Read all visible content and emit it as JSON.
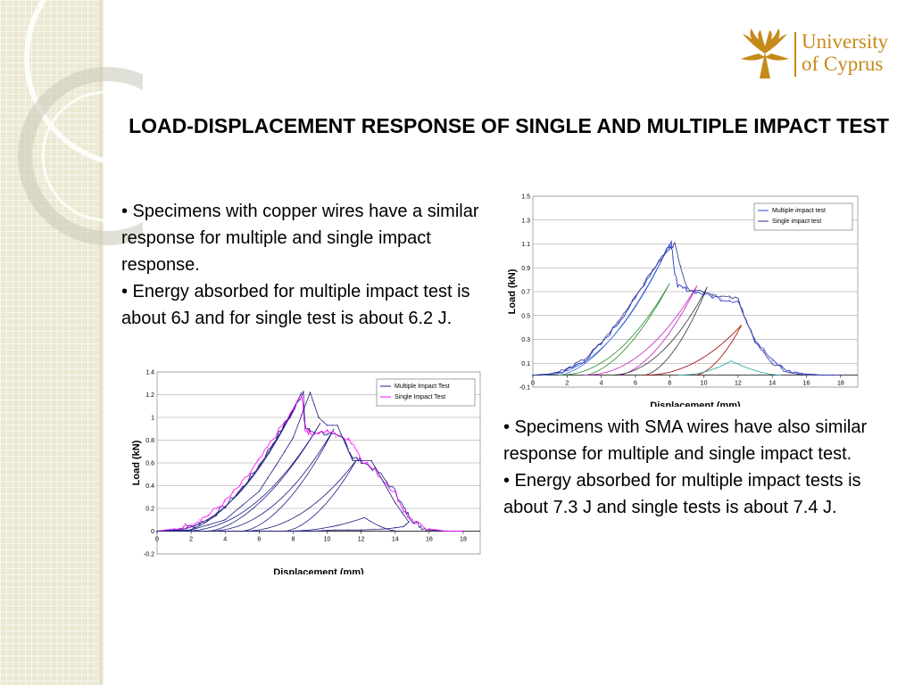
{
  "slide": {
    "title": "LOAD-DISPLACEMENT RESPONSE OF SINGLE AND MULTIPLE IMPACT TEST",
    "logo": {
      "line1": "University",
      "line2": "of Cyprus"
    },
    "colors": {
      "logo_gold": "#c68a1a",
      "sidebar": "#ece8d2"
    }
  },
  "text_top": {
    "bullet1": "• Specimens with copper wires have a similar response for multiple and single impact response.",
    "bullet2": "• Energy absorbed for multiple impact test is about 6J and for single test is about 6.2 J."
  },
  "text_bottom": {
    "bullet1": "• Specimens with SMA wires have also similar response for multiple and single impact test.",
    "bullet2": "• Energy absorbed for multiple impact tests is about 7.3 J and single tests is about 7.4 J."
  },
  "chart_data": [
    {
      "type": "line",
      "xlabel": "Displacement (mm)",
      "ylabel": "Load (kN)",
      "xlim": [
        0,
        19
      ],
      "ylim": [
        -0.2,
        1.4
      ],
      "xticks": [
        0,
        2,
        4,
        6,
        8,
        10,
        12,
        14,
        16,
        18
      ],
      "yticks": [
        -0.2,
        0,
        0.2,
        0.4,
        0.6,
        0.8,
        1,
        1.2,
        1.4
      ],
      "ytick_labels": [
        "-0.2",
        "0",
        "0.2",
        "0.4",
        "0.6",
        "0.8",
        "1",
        "1.2",
        "1.4"
      ],
      "grid": "horizontal",
      "legend_position": "top-right",
      "series": [
        {
          "name": "Multiple Impact Test",
          "color": "#1a1a80",
          "width": 0.8,
          "x": [
            0,
            1,
            2,
            3,
            4,
            5,
            6,
            7,
            8,
            8.6,
            8.7,
            9,
            10,
            11,
            11.5,
            12,
            13,
            14,
            14.5,
            15,
            15.5,
            16,
            17,
            18
          ],
          "y": [
            0,
            0.01,
            0.04,
            0.1,
            0.22,
            0.38,
            0.58,
            0.82,
            1.05,
            1.23,
            0.92,
            0.88,
            0.86,
            0.8,
            0.65,
            0.62,
            0.52,
            0.35,
            0.2,
            0.1,
            0.04,
            0.01,
            0,
            0
          ],
          "jitter": 0.025
        },
        {
          "name": "Single Impact Test",
          "color": "#ff00ff",
          "width": 0.8,
          "x": [
            0,
            1,
            2,
            3,
            4,
            5,
            6,
            7,
            8,
            8.5,
            8.7,
            9,
            10,
            11,
            11.5,
            12,
            13,
            14,
            14.5,
            15,
            16,
            17,
            18
          ],
          "y": [
            0,
            0.02,
            0.06,
            0.14,
            0.26,
            0.42,
            0.62,
            0.85,
            1.06,
            1.2,
            0.9,
            0.86,
            0.88,
            0.82,
            0.78,
            0.64,
            0.5,
            0.34,
            0.18,
            0.08,
            0.02,
            0,
            0
          ],
          "jitter": 0.025
        },
        {
          "name": "",
          "legend": false,
          "color": "#1a1a80",
          "width": 0.8,
          "x": [
            0,
            2,
            4,
            6,
            7,
            8,
            9,
            9.5,
            10,
            10.6,
            11.5,
            12.6,
            14,
            14.8,
            14.5,
            13.5,
            12,
            10.5,
            9,
            7.5,
            6,
            4.5,
            3,
            1.5,
            0
          ],
          "y": [
            0,
            0.01,
            0.1,
            0.35,
            0.58,
            0.82,
            1.22,
            1.0,
            0.93,
            0.93,
            0.62,
            0.62,
            0.25,
            0.08,
            0.04,
            0.02,
            0.01,
            0.01,
            0,
            0,
            0,
            0,
            0,
            0,
            0
          ]
        }
      ],
      "loops": [
        {
          "start": 0.5,
          "peak_x": 8.5,
          "peak_y": 1.22,
          "end": 1.5
        },
        {
          "start": 1.5,
          "peak_x": 9.6,
          "peak_y": 0.95,
          "end": 3.0
        },
        {
          "start": 3.0,
          "peak_x": 10.4,
          "peak_y": 0.9,
          "end": 5.0
        },
        {
          "start": 5.0,
          "peak_x": 11.7,
          "peak_y": 0.62,
          "end": 7.5
        },
        {
          "start": 7.5,
          "peak_x": 12.2,
          "peak_y": 0.12,
          "end": 14.2
        }
      ]
    },
    {
      "type": "line",
      "xlabel": "Displacement (mm)",
      "ylabel": "Load (kN)",
      "xlim": [
        0,
        19
      ],
      "ylim": [
        -0.1,
        1.5
      ],
      "xticks": [
        0,
        2,
        4,
        6,
        8,
        10,
        12,
        14,
        16,
        18
      ],
      "yticks": [
        -0.1,
        0.1,
        0.3,
        0.5,
        0.7,
        0.9,
        1.1,
        1.3,
        1.5
      ],
      "ytick_labels": [
        "-0.1",
        "0.1",
        "0.3",
        "0.5",
        "0.7",
        "0.9",
        "1.1",
        "1.3",
        "1.5"
      ],
      "grid": "horizontal",
      "legend_position": "top-right",
      "series": [
        {
          "name": "Multiple impact test",
          "color": "#2a3fd0",
          "width": 0.9,
          "x": [
            0,
            1,
            2,
            3,
            4,
            5,
            6,
            7,
            7.8,
            8.1,
            8.3,
            8.5,
            9,
            10,
            11,
            12,
            12.5,
            13,
            14,
            15,
            16,
            17,
            18
          ],
          "y": [
            0,
            0.01,
            0.04,
            0.12,
            0.26,
            0.44,
            0.65,
            0.88,
            1.05,
            1.12,
            0.85,
            0.74,
            0.72,
            0.68,
            0.64,
            0.62,
            0.46,
            0.3,
            0.12,
            0.03,
            0.01,
            0,
            0
          ],
          "jitter": 0.02
        },
        {
          "name": "Single impact test",
          "color": "#30308a",
          "width": 0.8,
          "x": [
            0,
            1,
            2,
            3,
            4,
            5,
            6,
            7,
            8,
            8.3,
            9,
            10,
            11,
            12,
            12.5,
            13,
            14,
            15,
            16,
            17,
            18
          ],
          "y": [
            0,
            0.01,
            0.05,
            0.13,
            0.27,
            0.45,
            0.66,
            0.88,
            1.06,
            1.1,
            0.73,
            0.7,
            0.66,
            0.64,
            0.44,
            0.28,
            0.1,
            0.02,
            0,
            0,
            0
          ],
          "jitter": 0.015
        }
      ],
      "loops": [
        {
          "start": 0.5,
          "peak_x": 8.0,
          "peak_y": 1.1,
          "end": 1.5,
          "color": "#3a6ad8"
        },
        {
          "start": 1.5,
          "peak_x": 8.0,
          "peak_y": 0.77,
          "end": 3.0,
          "color": "#2a8a2a"
        },
        {
          "start": 3.0,
          "peak_x": 9.6,
          "peak_y": 0.75,
          "end": 5.0,
          "color": "#c020c0"
        },
        {
          "start": 4.5,
          "peak_x": 10.2,
          "peak_y": 0.74,
          "end": 6.5,
          "color": "#303030"
        },
        {
          "start": 6.5,
          "peak_x": 12.2,
          "peak_y": 0.42,
          "end": 9.5,
          "color": "#a00000"
        },
        {
          "start": 8.5,
          "peak_x": 11.6,
          "peak_y": 0.12,
          "end": 14.5,
          "color": "#20a0a0"
        }
      ]
    }
  ]
}
